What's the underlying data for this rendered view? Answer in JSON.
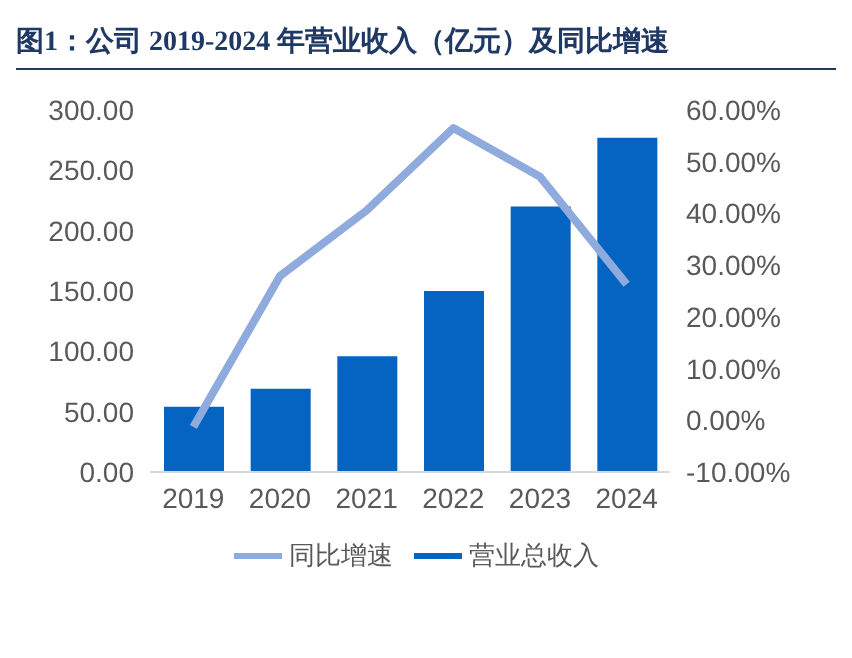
{
  "chart_data": {
    "type": "bar",
    "title": "图1：公司 2019-2024 年营业收入（亿元）及同比增速",
    "categories": [
      "2019",
      "2020",
      "2021",
      "2022",
      "2023",
      "2024"
    ],
    "series": [
      {
        "name": "营业总收入",
        "color": "#0563c1",
        "values": [
          54,
          69,
          96,
          150,
          220,
          277
        ]
      },
      {
        "name": "同比增速",
        "type": "line",
        "axis": "y2",
        "color": "#8faadc",
        "values": [
          -1.3,
          27.9,
          40.6,
          56.5,
          47.1,
          26.3
        ]
      }
    ],
    "ylim": [
      0,
      300
    ],
    "yticks": [
      {
        "value": 0,
        "label": "0.00"
      },
      {
        "value": 50,
        "label": "50.00"
      },
      {
        "value": 100,
        "label": "100.00"
      },
      {
        "value": 150,
        "label": "150.00"
      },
      {
        "value": 200,
        "label": "200.00"
      },
      {
        "value": 250,
        "label": "250.00"
      },
      {
        "value": 300,
        "label": "300.00"
      }
    ],
    "y2lim": [
      -10,
      60
    ],
    "y2ticks": [
      {
        "value": -10,
        "label": "-10.00%"
      },
      {
        "value": 0,
        "label": "0.00%"
      },
      {
        "value": 10,
        "label": "10.00%"
      },
      {
        "value": 20,
        "label": "20.00%"
      },
      {
        "value": 30,
        "label": "30.00%"
      },
      {
        "value": 40,
        "label": "40.00%"
      },
      {
        "value": 50,
        "label": "50.00%"
      },
      {
        "value": 60,
        "label": "60.00%"
      }
    ],
    "grid": false,
    "legend": "bottom",
    "marker": "none"
  }
}
